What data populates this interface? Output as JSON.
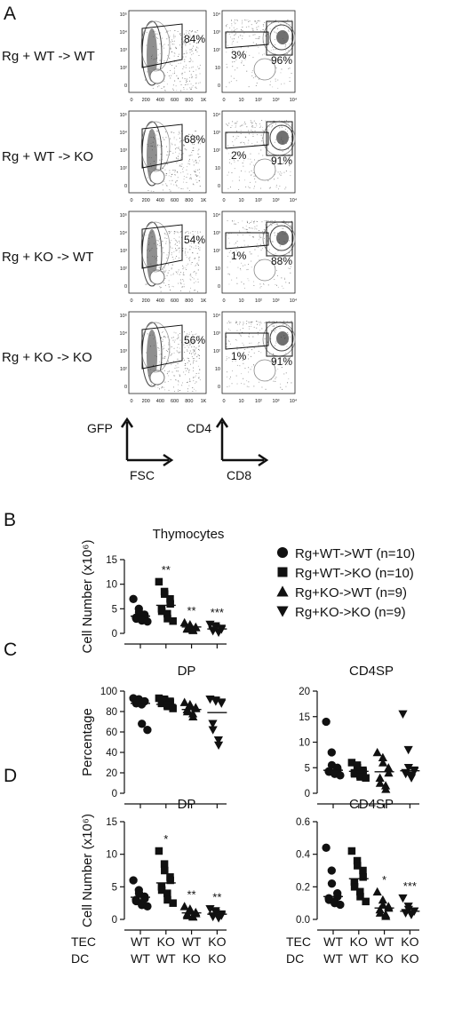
{
  "panel_letters": {
    "a": "A",
    "b": "B",
    "c": "C",
    "d": "D"
  },
  "panel_a": {
    "rows": [
      {
        "label": "Rg + WT -> WT",
        "gfp_pct": "84%",
        "dn_pct": "3%",
        "dp_pct": "96%"
      },
      {
        "label": "Rg + WT -> KO",
        "gfp_pct": "68%",
        "dn_pct": "2%",
        "dp_pct": "91%"
      },
      {
        "label": "Rg + KO -> WT",
        "gfp_pct": "54%",
        "dn_pct": "1%",
        "dp_pct": "88%"
      },
      {
        "label": "Rg + KO -> KO",
        "gfp_pct": "56%",
        "dn_pct": "1%",
        "dp_pct": "91%"
      }
    ],
    "fsc_ticks": [
      "0",
      "200",
      "400",
      "600",
      "800",
      "1K"
    ],
    "gfp_ticks": [
      "0",
      "10²",
      "10³",
      "10⁴",
      "10⁵"
    ],
    "log_ticks": [
      "0",
      "10",
      "10²",
      "10³",
      "10⁴"
    ],
    "axes": {
      "left_y": "GFP",
      "left_x": "FSC",
      "right_y": "CD4",
      "right_x": "CD8"
    }
  },
  "legend": [
    {
      "label": "Rg+WT->WT (n=10)",
      "shape": "circle"
    },
    {
      "label": "Rg+WT->KO  (n=10)",
      "shape": "square"
    },
    {
      "label": "Rg+KO->WT (n=9)",
      "shape": "triangle-up"
    },
    {
      "label": "Rg+KO->KO (n=9)",
      "shape": "triangle-down"
    }
  ],
  "x_groups": {
    "tec_label": "TEC",
    "dc_label": "DC",
    "tec": [
      "WT",
      "KO",
      "WT",
      "KO"
    ],
    "dc": [
      "WT",
      "WT",
      "KO",
      "KO"
    ]
  },
  "chart_data": [
    {
      "id": "B",
      "type": "scatter",
      "title": "Thymocytes",
      "ylabel": "Cell Number (x10⁶)",
      "ylim": [
        0,
        15
      ],
      "yticks": [
        "0",
        "5",
        "10",
        "15"
      ],
      "groups": [
        "Rg+WT->WT",
        "Rg+WT->KO",
        "Rg+KO->WT",
        "Rg+KO->KO"
      ],
      "significance": [
        "",
        "**",
        "**",
        "***"
      ],
      "means": [
        3.5,
        5.7,
        1.3,
        0.9
      ],
      "points": [
        [
          7,
          5,
          4.3,
          3.8,
          3.5,
          3.2,
          3,
          2.8,
          2.6,
          2.4
        ],
        [
          10.5,
          8.5,
          8,
          7,
          6,
          5,
          4.5,
          4,
          3,
          2.5
        ],
        [
          2.2,
          1.8,
          1.5,
          1.3,
          1.2,
          1,
          0.9,
          0.8,
          0.6
        ],
        [
          1.8,
          1.5,
          1.2,
          1,
          0.8,
          0.6,
          0.5,
          0.3,
          0.2
        ]
      ]
    },
    {
      "id": "C-DP",
      "type": "scatter",
      "title": "DP",
      "ylabel": "Percentage",
      "ylim": [
        0,
        100
      ],
      "yticks": [
        "0",
        "20",
        "40",
        "60",
        "80",
        "100"
      ],
      "significance": [
        "",
        "",
        "",
        ""
      ],
      "means": [
        88,
        87,
        82,
        79
      ],
      "points": [
        [
          93,
          92,
          91,
          90,
          90,
          89,
          88,
          87,
          68,
          62
        ],
        [
          93,
          92,
          91,
          90,
          89,
          88,
          88,
          86,
          85,
          83
        ],
        [
          89,
          87,
          85,
          84,
          83,
          82,
          80,
          78,
          75
        ],
        [
          92,
          91,
          90,
          89,
          88,
          68,
          62,
          52,
          47
        ]
      ]
    },
    {
      "id": "C-CD4SP",
      "type": "scatter",
      "title": "CD4SP",
      "ylabel": "",
      "ylim": [
        0,
        20
      ],
      "yticks": [
        "0",
        "5",
        "10",
        "15",
        "20"
      ],
      "significance": [
        "",
        "",
        "",
        ""
      ],
      "means": [
        4.5,
        4.3,
        4.2,
        4.4
      ],
      "points": [
        [
          14,
          8,
          5.5,
          5,
          4.6,
          4.3,
          4.2,
          4,
          3.8,
          3.5
        ],
        [
          6,
          5.5,
          5,
          4.5,
          4.2,
          4,
          3.8,
          3.5,
          3.2,
          3
        ],
        [
          8,
          7,
          6,
          5,
          4,
          3,
          2,
          1.5,
          0.8
        ],
        [
          15.5,
          8.5,
          5,
          4.5,
          4.3,
          4,
          3.8,
          3.5,
          3
        ]
      ]
    },
    {
      "id": "D-DP",
      "type": "scatter",
      "title": "DP",
      "ylabel": "Cell Number (x10⁶)",
      "ylim": [
        0,
        15
      ],
      "yticks": [
        "0",
        "5",
        "10",
        "15"
      ],
      "significance": [
        "",
        "*",
        "**",
        "**"
      ],
      "means": [
        3.4,
        5.6,
        1,
        0.8
      ],
      "points": [
        [
          6,
          4.5,
          4,
          3.5,
          3.2,
          3,
          2.8,
          2.5,
          2.2,
          2
        ],
        [
          10.5,
          8.5,
          7.5,
          6.5,
          6,
          5,
          4.5,
          4,
          3,
          2.5
        ],
        [
          2,
          1.6,
          1.3,
          1.1,
          0.9,
          0.8,
          0.6,
          0.5,
          0.4
        ],
        [
          1.6,
          1.3,
          1,
          0.8,
          0.6,
          0.5,
          0.4,
          0.3,
          0.2
        ]
      ]
    },
    {
      "id": "D-CD4SP",
      "type": "scatter",
      "title": "CD4SP",
      "ylabel": "",
      "ylim": [
        0,
        0.6
      ],
      "yticks": [
        "0.0",
        "0.2",
        "0.4",
        "0.6"
      ],
      "significance": [
        "",
        "",
        "*",
        "***"
      ],
      "means": [
        0.14,
        0.25,
        0.07,
        0.05
      ],
      "points": [
        [
          0.44,
          0.3,
          0.22,
          0.16,
          0.14,
          0.13,
          0.12,
          0.11,
          0.1,
          0.09
        ],
        [
          0.42,
          0.36,
          0.33,
          0.3,
          0.26,
          0.23,
          0.2,
          0.17,
          0.14,
          0.11
        ],
        [
          0.17,
          0.12,
          0.09,
          0.08,
          0.07,
          0.06,
          0.04,
          0.03,
          0.02
        ],
        [
          0.13,
          0.08,
          0.06,
          0.05,
          0.05,
          0.04,
          0.04,
          0.03,
          0.03
        ]
      ]
    }
  ]
}
